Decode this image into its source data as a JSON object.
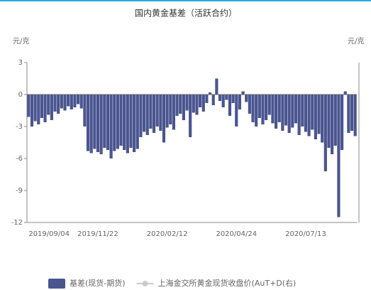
{
  "chart_data": {
    "type": "bar",
    "title": "国内黄金基差（活跃合约）",
    "y_axis_label": "元/克",
    "y2_axis_label": "元/克",
    "categories": [
      "2019/09/04",
      null,
      null,
      null,
      null,
      null,
      null,
      null,
      null,
      null,
      null,
      null,
      null,
      null,
      null,
      null,
      null,
      null,
      null,
      null,
      null,
      "2019/11/22",
      null,
      null,
      null,
      null,
      null,
      null,
      null,
      null,
      null,
      null,
      null,
      null,
      null,
      null,
      null,
      null,
      null,
      null,
      null,
      null,
      "2020/02/12",
      null,
      null,
      null,
      null,
      null,
      null,
      null,
      null,
      null,
      null,
      null,
      null,
      null,
      null,
      null,
      null,
      null,
      null,
      null,
      null,
      "2020/04/24",
      null,
      null,
      null,
      null,
      null,
      null,
      null,
      null,
      null,
      null,
      null,
      null,
      null,
      null,
      null,
      null,
      null,
      null,
      null,
      null,
      "2020/07/13",
      null,
      null,
      null,
      null,
      null,
      null,
      null,
      null,
      null,
      null,
      null,
      null,
      null,
      null,
      null
    ],
    "series": [
      {
        "name": "基差(现货-期货)",
        "color": "#4a5590",
        "values": [
          -2.1,
          -3.0,
          -2.5,
          -2.8,
          -2.2,
          -2.6,
          -1.9,
          -2.4,
          -1.6,
          -1.8,
          -1.3,
          -1.5,
          -1.1,
          -1.4,
          -1.2,
          -0.9,
          -1.3,
          -3.0,
          -5.3,
          -5.5,
          -5.1,
          -5.4,
          -5.6,
          -5.0,
          -5.2,
          -6.0,
          -5.3,
          -5.1,
          -4.8,
          -5.2,
          -5.5,
          -5.0,
          -5.4,
          -5.1,
          -4.0,
          -3.5,
          -3.8,
          -3.2,
          -3.6,
          -3.0,
          -3.4,
          -4.5,
          -3.1,
          -2.8,
          -3.3,
          -2.0,
          -1.8,
          -2.4,
          -1.5,
          -4.0,
          -1.7,
          -1.9,
          -1.2,
          -1.6,
          -0.8,
          0.2,
          -1.0,
          1.5,
          -0.6,
          -1.2,
          -0.5,
          -2.0,
          -0.8,
          -3.0,
          -1.4,
          0.3,
          -0.7,
          -1.8,
          -2.6,
          -3.0,
          -2.2,
          -2.8,
          -2.4,
          -1.9,
          -2.7,
          -3.2,
          -2.6,
          -3.4,
          -2.9,
          -3.6,
          -3.1,
          -2.7,
          -3.8,
          -3.0,
          -3.5,
          -3.9,
          -3.3,
          -4.2,
          -3.7,
          -4.5,
          -7.2,
          -5.0,
          -5.6,
          -4.8,
          -11.5,
          -5.2,
          0.3,
          -3.6,
          -3.4,
          -3.9
        ]
      }
    ],
    "hidden_series": [
      {
        "name": "上海金交所黄金现货收盘价(AuT+D(右)",
        "color": "#cccccc"
      }
    ],
    "ylim": [
      -12,
      3
    ],
    "yticks": [
      3,
      0,
      -3,
      -6,
      -9,
      -12
    ]
  }
}
